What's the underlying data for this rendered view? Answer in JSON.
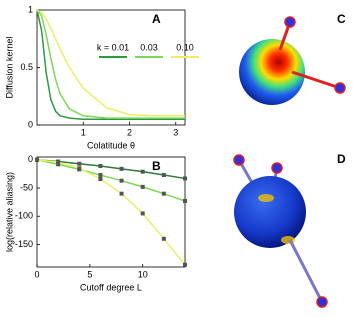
{
  "chart_data": [
    {
      "type": "line",
      "title": "A",
      "xlabel": "Colatitude θ",
      "ylabel": "Diffusion kernel",
      "x": [
        0,
        0.1,
        0.2,
        0.3,
        0.4,
        0.5,
        0.7,
        1,
        1.5,
        2,
        2.5,
        3,
        3.2
      ],
      "series": [
        {
          "name": "k = 0.01",
          "color": "#2e9a3e",
          "values": [
            1,
            0.82,
            0.45,
            0.22,
            0.12,
            0.08,
            0.06,
            0.05,
            0.05,
            0.05,
            0.05,
            0.05,
            0.05
          ]
        },
        {
          "name": "0.03",
          "color": "#7dd85a",
          "values": [
            1,
            0.95,
            0.78,
            0.58,
            0.4,
            0.27,
            0.14,
            0.08,
            0.06,
            0.06,
            0.06,
            0.06,
            0.06
          ]
        },
        {
          "name": "0.10",
          "color": "#eeee66",
          "values": [
            1,
            0.98,
            0.92,
            0.84,
            0.75,
            0.66,
            0.5,
            0.32,
            0.15,
            0.09,
            0.08,
            0.08,
            0.08
          ]
        }
      ],
      "xlim": [
        0,
        3.2
      ],
      "xticks": [
        1,
        2,
        3
      ],
      "ylim": [
        0,
        1
      ],
      "yticks": [
        0,
        0.5,
        1
      ],
      "legend": true
    },
    {
      "type": "line",
      "title": "B",
      "xlabel": "Cutoff degree L",
      "ylabel": "log(relative aliasing)",
      "x": [
        0,
        2,
        4,
        6,
        8,
        10,
        12,
        14
      ],
      "series": [
        {
          "color": "#2e7a3e",
          "values": [
            0,
            -3,
            -7,
            -11,
            -16,
            -21,
            -27,
            -33
          ]
        },
        {
          "color": "#7dd85a",
          "values": [
            0,
            -8,
            -17,
            -27,
            -37,
            -48,
            -60,
            -73
          ]
        },
        {
          "color": "#eeee66",
          "values": [
            0,
            -4,
            -15,
            -34,
            -60,
            -95,
            -140,
            -186
          ]
        }
      ],
      "markers": "square",
      "marker_color": "#555555",
      "xlim": [
        0,
        14
      ],
      "xticks": [
        0,
        5,
        10
      ],
      "ylim": [
        -190,
        5
      ],
      "yticks": [
        0,
        -50,
        -100,
        -150
      ],
      "legend": false
    }
  ],
  "sphere_panels": [
    {
      "label": "C"
    },
    {
      "label": "D"
    }
  ]
}
